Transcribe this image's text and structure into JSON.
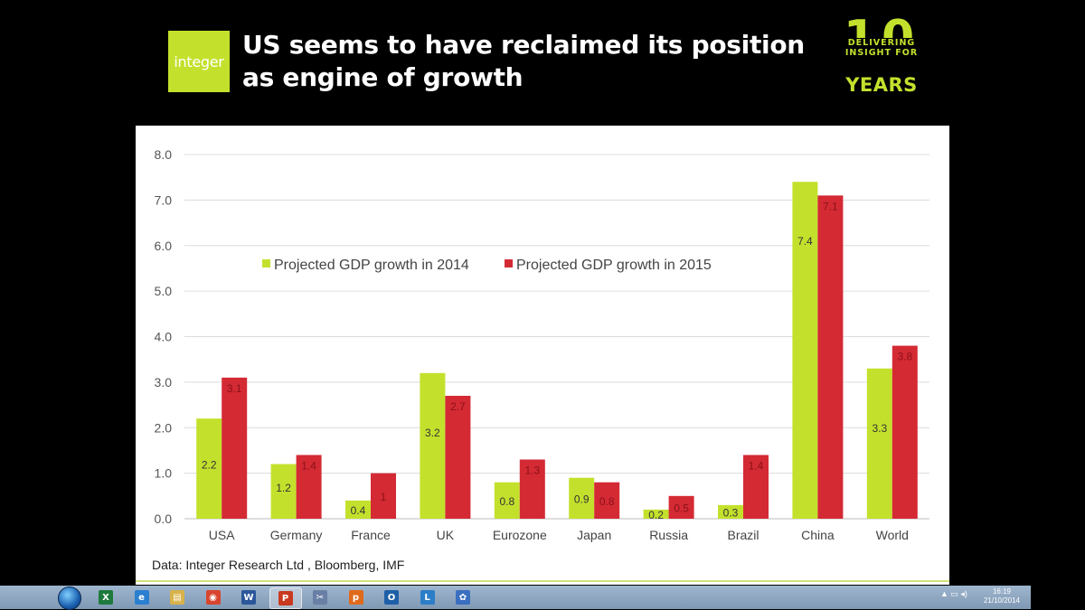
{
  "header": {
    "logo_text": "integer",
    "title": "US seems to have reclaimed its position as engine of growth",
    "badge": {
      "number": "10",
      "line1": "DELIVERING",
      "line2": "INSIGHT FOR",
      "line3": "YEARS"
    }
  },
  "source_note": "Data: Integer Research Ltd , Bloomberg, IMF",
  "colors": {
    "series_2014": "#c3e12c",
    "series_2015": "#d42a34",
    "accent": "#c3e12c"
  },
  "chart_data": {
    "type": "bar",
    "categories": [
      "USA",
      "Germany",
      "France",
      "UK",
      "Eurozone",
      "Japan",
      "Russia",
      "Brazil",
      "China",
      "World"
    ],
    "series": [
      {
        "name": "Projected GDP growth in 2014",
        "values": [
          2.2,
          1.2,
          0.4,
          3.2,
          0.8,
          0.9,
          0.2,
          0.3,
          7.4,
          3.3
        ],
        "labels": [
          "2.2",
          "1.2",
          "0.4",
          "3.2",
          "0.8",
          "0.9",
          "0.2",
          "0.3",
          "7.4",
          "3.3"
        ]
      },
      {
        "name": "Projected GDP growth in 2015",
        "values": [
          3.1,
          1.4,
          1.0,
          2.7,
          1.3,
          0.8,
          0.5,
          1.4,
          7.1,
          3.8
        ],
        "labels": [
          "3.1",
          "1.4",
          "1",
          "2.7",
          "1.3",
          "0.8",
          "0.5",
          "1.4",
          "7.1",
          "3.8"
        ]
      }
    ],
    "yticks": [
      "0.0",
      "1.0",
      "2.0",
      "3.0",
      "4.0",
      "5.0",
      "6.0",
      "7.0",
      "8.0"
    ],
    "ylim": [
      0,
      8
    ],
    "grid": true,
    "legend": "top-left inside plot"
  },
  "taskbar": {
    "apps": [
      {
        "name": "excel",
        "glyph": "X"
      },
      {
        "name": "internet-explorer",
        "glyph": "e"
      },
      {
        "name": "file-explorer",
        "glyph": "▤"
      },
      {
        "name": "chrome",
        "glyph": "◉"
      },
      {
        "name": "word",
        "glyph": "W"
      },
      {
        "name": "powerpoint",
        "glyph": "P"
      },
      {
        "name": "snipping",
        "glyph": "✂"
      },
      {
        "name": "prezi",
        "glyph": "p"
      },
      {
        "name": "outlook",
        "glyph": "O"
      },
      {
        "name": "lync",
        "glyph": "L"
      },
      {
        "name": "settings",
        "glyph": "✿"
      }
    ],
    "clock_time": "16:19",
    "clock_date": "21/10/2014"
  }
}
